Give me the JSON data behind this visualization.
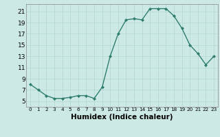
{
  "x": [
    0,
    1,
    2,
    3,
    4,
    5,
    6,
    7,
    8,
    9,
    10,
    11,
    12,
    13,
    14,
    15,
    16,
    17,
    18,
    19,
    20,
    21,
    22,
    23
  ],
  "y": [
    8.0,
    7.0,
    6.0,
    5.5,
    5.5,
    5.7,
    6.0,
    6.0,
    5.5,
    7.5,
    13.0,
    17.0,
    19.5,
    19.7,
    19.5,
    21.5,
    21.5,
    21.5,
    20.2,
    18.0,
    15.0,
    13.5,
    11.5,
    13.0
  ],
  "xlabel": "Humidex (Indice chaleur)",
  "ylim": [
    4,
    22
  ],
  "xlim": [
    -0.5,
    23.5
  ],
  "yticks": [
    5,
    7,
    9,
    11,
    13,
    15,
    17,
    19,
    21
  ],
  "xtick_labels": [
    "0",
    "1",
    "2",
    "3",
    "4",
    "5",
    "6",
    "7",
    "8",
    "9",
    "10",
    "11",
    "12",
    "13",
    "14",
    "15",
    "16",
    "17",
    "18",
    "19",
    "20",
    "21",
    "22",
    "23"
  ],
  "line_color": "#2e7d6e",
  "marker": "D",
  "marker_size": 2.0,
  "bg_color": "#cce9e5",
  "grid_color": "#b0d5d0",
  "axes_color": "#888888",
  "xlabel_fontsize": 7.5,
  "ytick_fontsize": 6.5,
  "xtick_fontsize": 5.2
}
